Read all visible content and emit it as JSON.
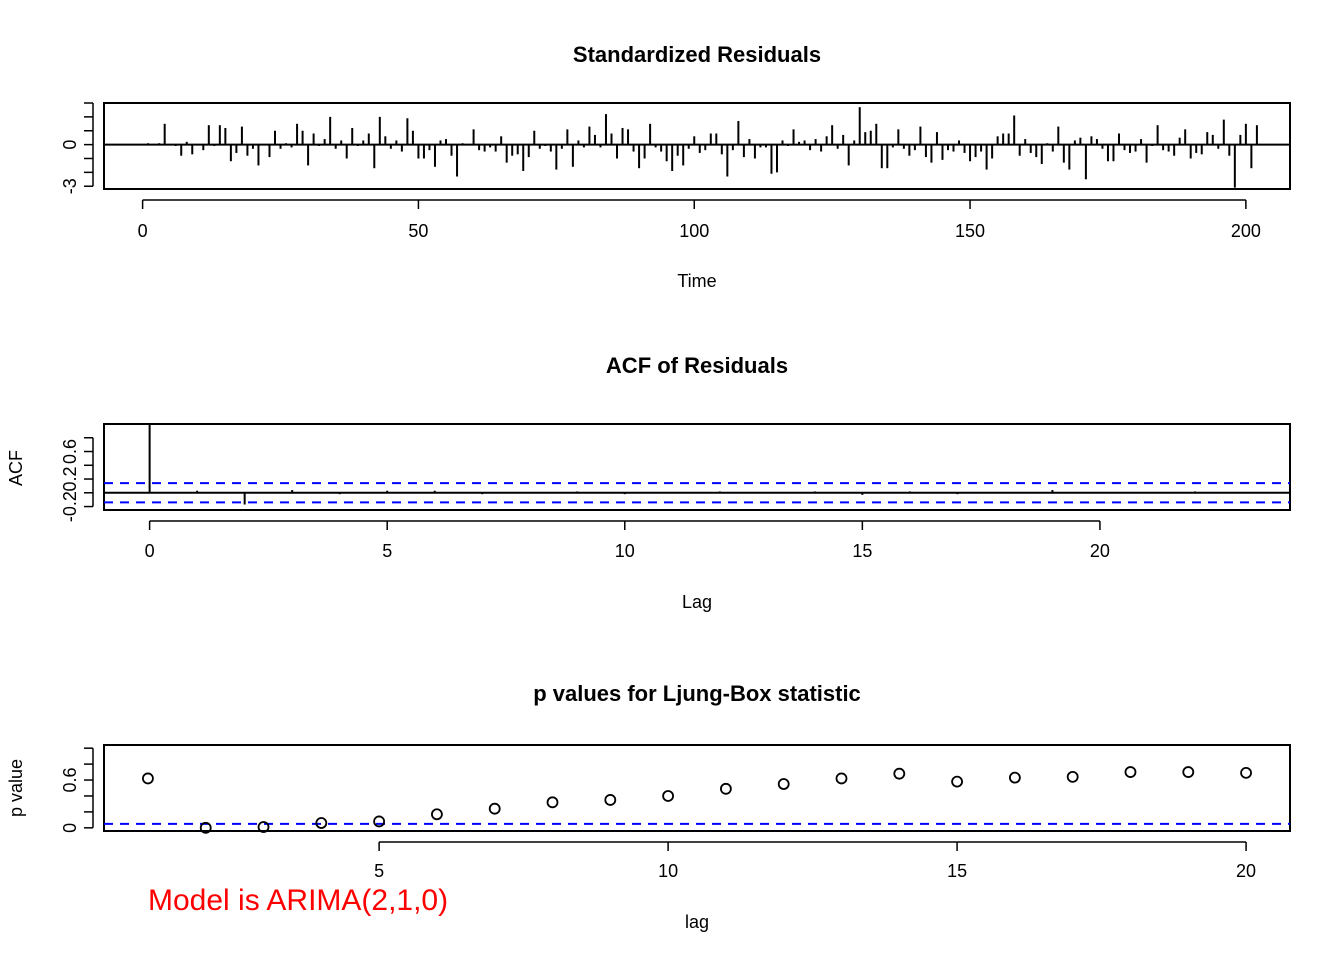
{
  "colors": {
    "axis": "#000000",
    "series": "#000000",
    "ci_line": "#0000ff",
    "note": "#ff0000"
  },
  "note": "Model is ARIMA(2,1,0)",
  "chart_data": [
    {
      "type": "bar",
      "title": "Standardized Residuals",
      "xlabel": "Time",
      "ylabel": "",
      "xlim": [
        -7,
        208
      ],
      "ylim": [
        -3.2,
        3.0
      ],
      "x_ticks": [
        0,
        50,
        100,
        150,
        200
      ],
      "y_ticks": [
        -3,
        0
      ],
      "y_minor_ticks": [
        -3,
        -2,
        -1,
        0,
        1,
        2,
        3
      ],
      "hline": 0,
      "values": [
        0.1,
        0.05,
        0.1,
        1.5,
        0.0,
        -0.1,
        -0.8,
        0.2,
        -0.7,
        0.05,
        -0.4,
        1.4,
        -0.1,
        1.4,
        1.2,
        -1.2,
        -0.6,
        1.3,
        -0.8,
        -0.3,
        -1.5,
        0.05,
        -0.9,
        1.0,
        -0.3,
        0.1,
        -0.2,
        1.5,
        1.0,
        -1.5,
        0.8,
        -0.1,
        0.4,
        2.0,
        -0.3,
        0.3,
        -1.0,
        1.2,
        -0.1,
        0.3,
        0.8,
        -1.7,
        2.0,
        0.6,
        -0.3,
        0.3,
        -0.5,
        1.9,
        1.0,
        -1.0,
        -1.0,
        -0.4,
        -1.6,
        0.3,
        0.4,
        -0.8,
        -2.3,
        0.1,
        0.0,
        1.1,
        -0.4,
        -0.5,
        -0.2,
        -0.5,
        0.6,
        -1.3,
        -0.8,
        -0.7,
        -1.9,
        -0.9,
        1.0,
        -0.3,
        -0.1,
        -0.5,
        -1.8,
        -0.3,
        1.1,
        -1.6,
        0.3,
        -0.2,
        1.3,
        0.7,
        -0.2,
        2.2,
        0.8,
        -1.0,
        1.2,
        1.1,
        -0.5,
        -1.7,
        -1.0,
        1.5,
        -0.2,
        -0.5,
        -1.2,
        -1.9,
        -0.8,
        -1.5,
        -0.3,
        0.6,
        -0.6,
        -0.4,
        0.8,
        0.8,
        -0.7,
        -2.3,
        -0.4,
        1.7,
        -0.9,
        0.4,
        -1.0,
        -0.2,
        -0.2,
        -2.1,
        -2.0,
        0.3,
        -0.1,
        1.1,
        0.2,
        0.3,
        -0.4,
        0.4,
        -0.5,
        0.6,
        1.4,
        -0.3,
        0.7,
        -1.5,
        0.3,
        2.7,
        0.9,
        1.0,
        1.5,
        -1.7,
        -1.7,
        -0.2,
        1.1,
        -0.3,
        -0.8,
        -0.4,
        1.3,
        -0.9,
        -1.3,
        0.9,
        -1.1,
        -0.4,
        -0.5,
        0.3,
        -0.6,
        -1.2,
        -0.9,
        -0.5,
        -1.8,
        -1.0,
        0.6,
        0.8,
        0.8,
        2.1,
        -0.8,
        0.4,
        -0.6,
        -0.9,
        -1.4,
        0.1,
        -0.5,
        1.3,
        -1.3,
        -1.8,
        0.3,
        0.5,
        -2.5,
        0.6,
        0.4,
        -0.3,
        -1.2,
        -1.2,
        0.8,
        -0.4,
        -0.6,
        -0.5,
        0.4,
        -1.3,
        -0.1,
        1.4,
        -0.4,
        -0.5,
        -0.8,
        0.5,
        1.1,
        -1.0,
        -0.6,
        -0.7,
        0.9,
        0.7,
        -0.3,
        1.8,
        -0.8,
        -3.1,
        0.7,
        1.5,
        -1.7,
        1.4
      ]
    },
    {
      "type": "bar",
      "title": "ACF of Residuals",
      "xlabel": "Lag",
      "ylabel": "ACF",
      "xlim": [
        -0.96,
        24.0
      ],
      "ylim": [
        -0.25,
        1.0
      ],
      "x_ticks": [
        0,
        5,
        10,
        15,
        20
      ],
      "y_ticks": [
        -0.2,
        0.2,
        0.6
      ],
      "y_minor_ticks": [
        -0.2,
        0.0,
        0.2,
        0.4,
        0.6,
        0.8
      ],
      "hline": 0,
      "ci": [
        0.14,
        -0.14
      ],
      "x": [
        0,
        1,
        2,
        3,
        4,
        5,
        6,
        7,
        8,
        9,
        10,
        11,
        12,
        13,
        14,
        15,
        16,
        17,
        18,
        19,
        20,
        21,
        22,
        23
      ],
      "values": [
        1.0,
        0.03,
        -0.17,
        0.04,
        -0.02,
        0.03,
        0.03,
        -0.02,
        0.01,
        0.02,
        -0.02,
        0.01,
        0.02,
        0.01,
        0.02,
        -0.03,
        0.02,
        -0.02,
        0.01,
        0.04,
        0.01,
        -0.01,
        0.02,
        0.01
      ]
    },
    {
      "type": "scatter",
      "title": "p values for Ljung-Box statistic",
      "xlabel": "lag",
      "ylabel": "p value",
      "xlim": [
        0.24,
        20.76
      ],
      "ylim": [
        -0.04,
        1.04
      ],
      "x_ticks": [
        5,
        10,
        15,
        20
      ],
      "y_ticks": [
        0.0,
        0.6
      ],
      "y_minor_ticks": [
        0.0,
        0.2,
        0.4,
        0.6,
        0.8,
        1.0
      ],
      "hline": 0.05,
      "x": [
        1,
        2,
        3,
        4,
        5,
        6,
        7,
        8,
        9,
        10,
        11,
        12,
        13,
        14,
        15,
        16,
        17,
        18,
        19,
        20
      ],
      "values": [
        0.62,
        0.0,
        0.01,
        0.06,
        0.08,
        0.17,
        0.24,
        0.32,
        0.35,
        0.4,
        0.49,
        0.55,
        0.62,
        0.68,
        0.58,
        0.63,
        0.64,
        0.7,
        0.7,
        0.69
      ]
    }
  ]
}
